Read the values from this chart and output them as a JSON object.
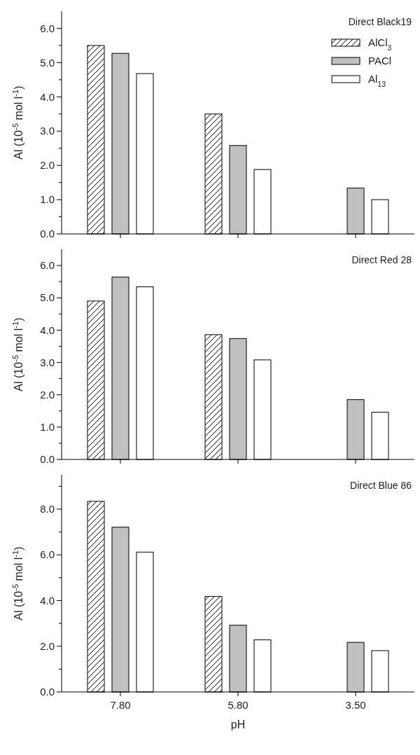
{
  "chart_data": [
    {
      "type": "bar",
      "title": "Direct Black19",
      "ylabel": "Al (10$^{-5}$ mol l$^{-1}$)",
      "categories": [
        "7.80",
        "5.80",
        "3.50"
      ],
      "ylim": [
        0,
        6.5
      ],
      "yticks": [
        {
          "value": 0,
          "label": "0.0"
        },
        {
          "value": 0.5,
          "label": null
        },
        {
          "value": 1,
          "label": "1.0"
        },
        {
          "value": 1.5,
          "label": null
        },
        {
          "value": 2,
          "label": "2.0"
        },
        {
          "value": 2.5,
          "label": null
        },
        {
          "value": 3,
          "label": "3.0"
        },
        {
          "value": 3.5,
          "label": null
        },
        {
          "value": 4,
          "label": "4.0"
        },
        {
          "value": 4.5,
          "label": null
        },
        {
          "value": 5,
          "label": "5.0"
        },
        {
          "value": 5.5,
          "label": null
        },
        {
          "value": 6,
          "label": "6.0"
        }
      ],
      "tick_labels": "y",
      "legend": "top right",
      "series": [
        {
          "name": "AlCl$_{3}$",
          "color": "#000000",
          "values": [
            5.5,
            3.5,
            null
          ]
        },
        {
          "name": "PACl",
          "color": "#c0c0c0",
          "values": [
            5.27,
            2.58,
            1.34
          ]
        },
        {
          "name": "Al$_{13}$",
          "color": "#ffffff",
          "values": [
            4.68,
            1.88,
            1.0
          ]
        }
      ]
    },
    {
      "type": "bar",
      "title": "Direct Red 28",
      "ylabel": "Al (10$^{-5}$ mol l$^{-1}$)",
      "categories": [
        "7.80",
        "5.80",
        "3.50"
      ],
      "ylim": [
        0,
        6.5
      ],
      "yticks": [
        {
          "value": 0,
          "label": "0.0"
        },
        {
          "value": 0.5,
          "label": null
        },
        {
          "value": 1,
          "label": "1.0"
        },
        {
          "value": 1.5,
          "label": null
        },
        {
          "value": 2,
          "label": "2.0"
        },
        {
          "value": 2.5,
          "label": null
        },
        {
          "value": 3,
          "label": "3.0"
        },
        {
          "value": 3.5,
          "label": null
        },
        {
          "value": 4,
          "label": "4.0"
        },
        {
          "value": 4.5,
          "label": null
        },
        {
          "value": 5,
          "label": "5.0"
        },
        {
          "value": 5.5,
          "label": null
        },
        {
          "value": 6,
          "label": "6.0"
        }
      ],
      "tick_labels": "y",
      "series": [
        {
          "color": "#000000",
          "values": [
            4.9,
            3.86,
            null
          ]
        },
        {
          "color": "#c0c0c0",
          "values": [
            5.64,
            3.74,
            1.85
          ]
        },
        {
          "color": "#ffffff",
          "values": [
            5.34,
            3.08,
            1.46
          ]
        }
      ]
    },
    {
      "type": "bar",
      "title": "Direct Blue 86",
      "ylabel": "Al (10$^{-5}$ mol l$^{-1}$)",
      "xlabel": "pH",
      "categories": [
        "7.80",
        "5.80",
        "3.50"
      ],
      "ylim": [
        0,
        9.5
      ],
      "yticks": [
        {
          "value": 0,
          "label": "0.0"
        },
        {
          "value": 1,
          "label": null
        },
        {
          "value": 2,
          "label": "2.0"
        },
        {
          "value": 3,
          "label": null
        },
        {
          "value": 4,
          "label": "4.0"
        },
        {
          "value": 5,
          "label": null
        },
        {
          "value": 6,
          "label": "6.0"
        },
        {
          "value": 7,
          "label": null
        },
        {
          "value": 8,
          "label": "8.0"
        },
        {
          "value": 9,
          "label": null
        }
      ],
      "series": [
        {
          "color": "#000000",
          "values": [
            8.34,
            4.18,
            null
          ]
        },
        {
          "color": "#c0c0c0",
          "values": [
            7.21,
            2.92,
            2.17
          ]
        },
        {
          "color": "#ffffff",
          "values": [
            6.12,
            2.28,
            1.81
          ]
        }
      ]
    }
  ]
}
